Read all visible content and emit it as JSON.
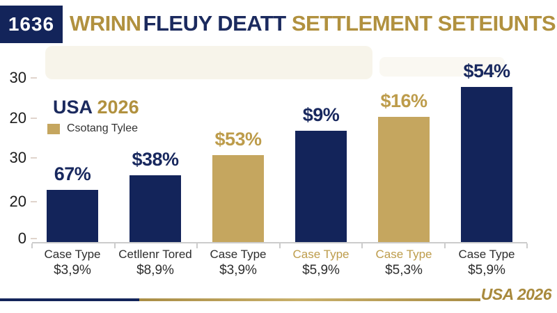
{
  "header": {
    "badge": "1636",
    "title_parts": [
      {
        "text": "WRINN",
        "color": "#b1913f"
      },
      {
        "text": "FLEUY DEATT",
        "color": "#1b2a5e"
      },
      {
        "text": " SETTLEMENT SETEIUNTS",
        "color": "#b1913f"
      }
    ]
  },
  "legend": {
    "title_usa": "USA",
    "title_year": " 2026",
    "series_label": "Csotang Tylee",
    "swatch_color": "#c5a65f"
  },
  "footer": {
    "stamp": "USA 2026"
  },
  "colors": {
    "navy": "#13245a",
    "gold": "#c5a65f",
    "gold_label": "#bd9c4b",
    "navy_label": "#18285e",
    "label_dark": "#2d2d2d",
    "axis_line": "#cccccc"
  },
  "chart_data": {
    "type": "bar",
    "title": "WRINNFLEUY DEATT SETTLEMENT SETEIUNTS",
    "xlabel": "",
    "ylabel": "",
    "ylim": [
      0,
      40
    ],
    "grid": false,
    "legend_position": "upper-left",
    "y_ticks_top_to_bottom": [
      "30",
      "20",
      "30",
      "20",
      "0"
    ],
    "bars": [
      {
        "category": "Case Type",
        "sub_label": "$3,9%",
        "value_label": "67%",
        "value": 13,
        "bar_color": "navy",
        "category_color": "dark"
      },
      {
        "category": "Cetllenr Tored",
        "sub_label": "$8,9%",
        "value_label": "$38%",
        "value": 16.5,
        "bar_color": "navy",
        "category_color": "dark"
      },
      {
        "category": "Case Type",
        "sub_label": "$3,9%",
        "value_label": "$53%",
        "value": 21.5,
        "bar_color": "gold",
        "category_color": "dark"
      },
      {
        "category": "Case Type",
        "sub_label": "$5,9%",
        "value_label": "$9%",
        "value": 27.5,
        "bar_color": "navy",
        "category_color": "gold"
      },
      {
        "category": "Case Type",
        "sub_label": "$5,3%",
        "value_label": "$16%",
        "value": 31,
        "bar_color": "gold",
        "category_color": "gold"
      },
      {
        "category": "Case Type",
        "sub_label": "$5,9%",
        "value_label": "$54%",
        "value": 38.4,
        "bar_color": "navy",
        "category_color": "dark"
      }
    ]
  }
}
